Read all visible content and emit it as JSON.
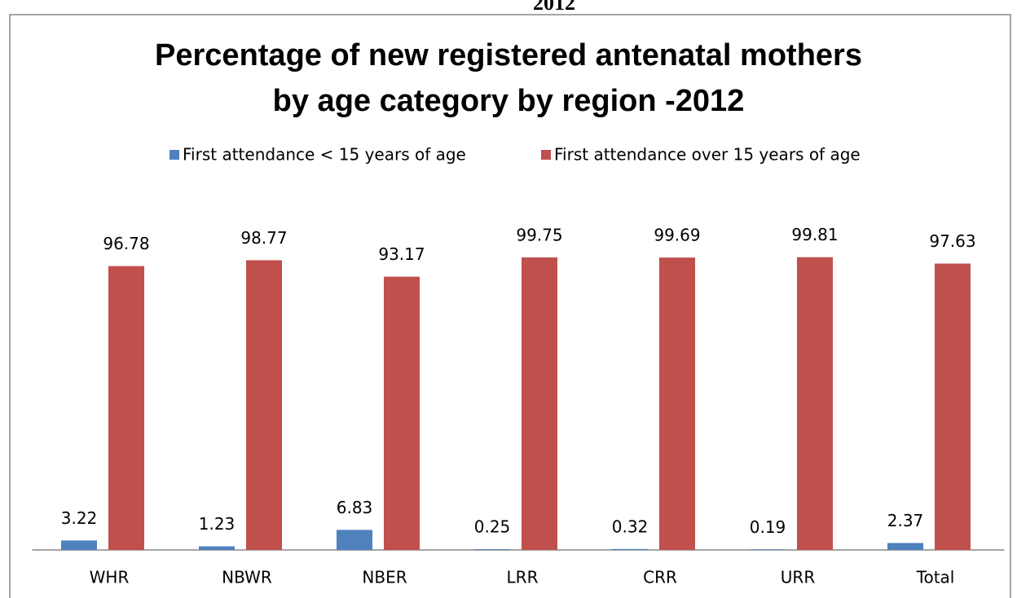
{
  "header_text": "2012",
  "chart_data": {
    "type": "bar",
    "title": [
      "Percentage of new registered antenatal mothers",
      "by age category by region -2012"
    ],
    "categories": [
      "WHR",
      "NBWR",
      "NBER",
      "LRR",
      "CRR",
      "URR",
      "Total"
    ],
    "series": [
      {
        "name": "First attendance < 15 years of age",
        "color": "#4f81bd",
        "values": [
          3.22,
          1.23,
          6.83,
          0.25,
          0.32,
          0.19,
          2.37
        ]
      },
      {
        "name": "First attendance over 15 years of age",
        "color": "#c0504d",
        "values": [
          96.78,
          98.77,
          93.17,
          99.75,
          99.69,
          99.81,
          97.63
        ]
      }
    ],
    "ylim": [
      0,
      100
    ],
    "legend": "top"
  }
}
